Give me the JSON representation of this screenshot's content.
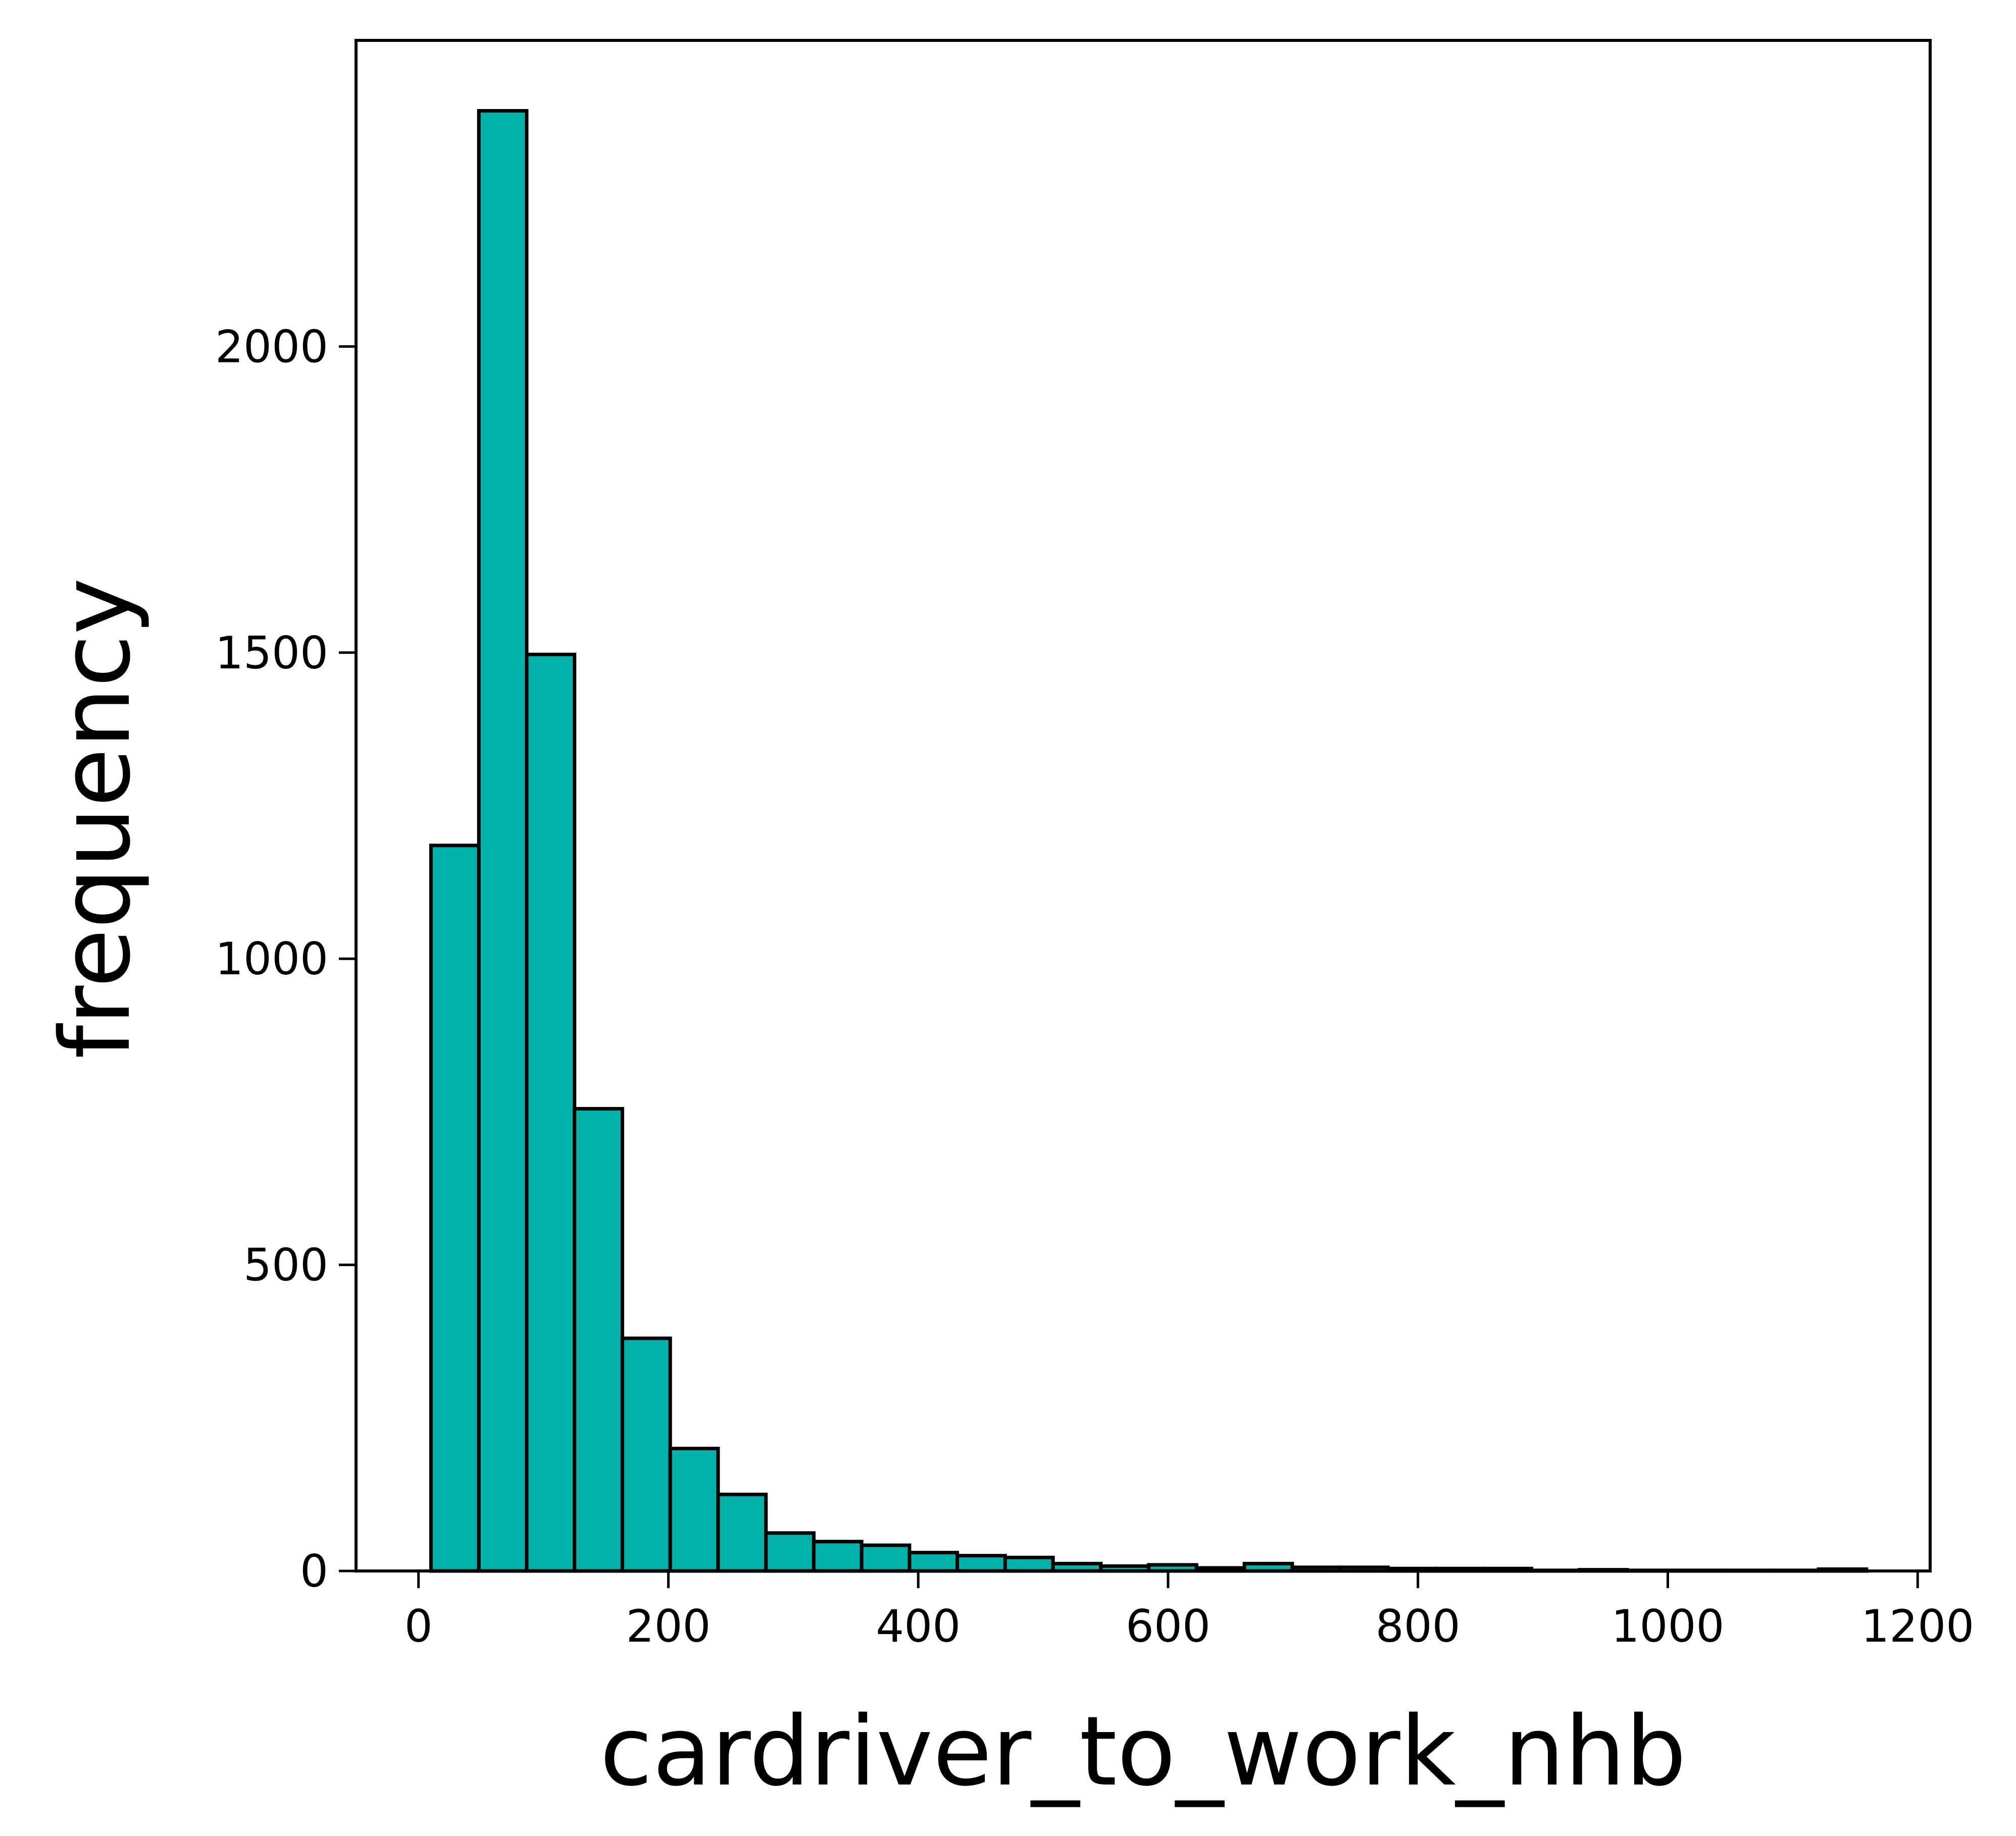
{
  "chart_data": {
    "type": "bar",
    "subtype": "histogram",
    "title": "",
    "xlabel": "cardriver_to_work_nhb",
    "ylabel": "frequency",
    "bin_edges": [
      10,
      48.3,
      86.6,
      124.9,
      163.2,
      201.5,
      239.8,
      278.1,
      316.4,
      354.7,
      393.0,
      431.3,
      469.6,
      507.9,
      546.2,
      584.5,
      622.8,
      661.1,
      699.4,
      737.7,
      776.0,
      814.3,
      852.6,
      890.9,
      929.2,
      967.5,
      1005.8,
      1044.1,
      1082.4,
      1120.7,
      1159.0
    ],
    "values": [
      1185,
      2385,
      1497,
      755,
      380,
      200,
      125,
      62,
      48,
      42,
      30,
      25,
      22,
      12,
      8,
      10,
      5,
      12,
      6,
      6,
      4,
      4,
      4,
      1,
      2,
      1,
      1,
      1,
      1,
      3
    ],
    "xlim": [
      -50,
      1210
    ],
    "ylim": [
      0,
      2500
    ],
    "xticks": [
      "0",
      "200",
      "400",
      "600",
      "800",
      "1000",
      "1200"
    ],
    "xtick_values": [
      0,
      200,
      400,
      600,
      800,
      1000,
      1200
    ],
    "yticks": [
      "0",
      "500",
      "1000",
      "1500",
      "2000"
    ],
    "ytick_values": [
      0,
      500,
      1000,
      1500,
      2000
    ],
    "bar_color": "#00b2a9",
    "edge_color": "#000000",
    "grid": false
  }
}
